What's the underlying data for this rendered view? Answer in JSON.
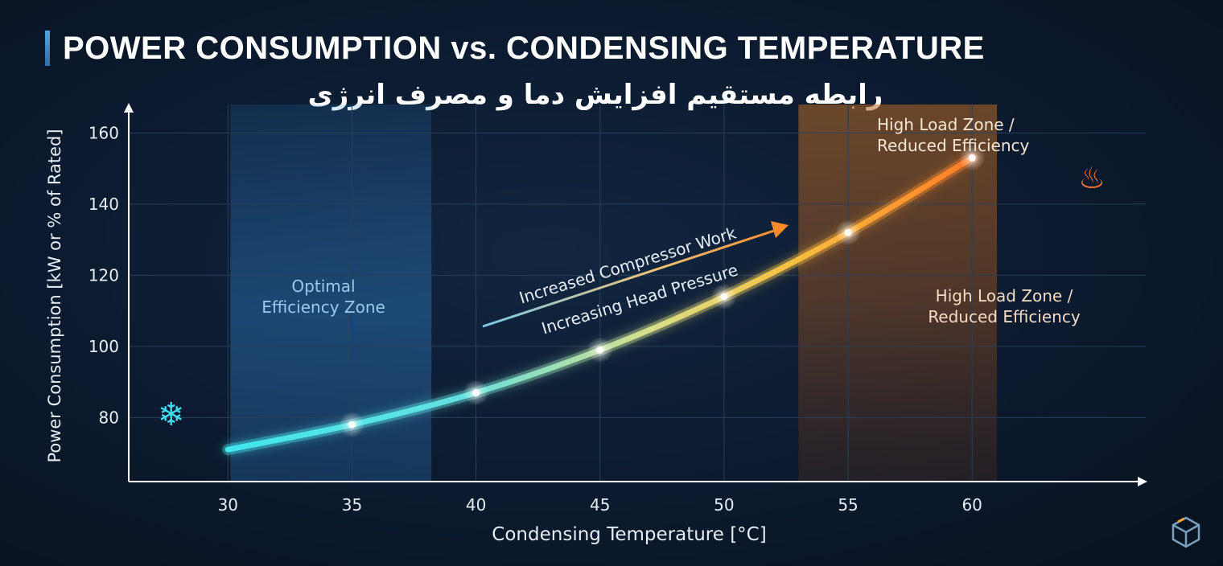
{
  "chart_data": {
    "type": "line",
    "title": "POWER CONSUMPTION vs. CONDENSING TEMPERATURE",
    "subtitle": "رابطه مستقیم افزایش دما و مصرف انرژی",
    "xlabel": "Condensing Temperature [°C]",
    "ylabel": "Power Consumption [kW or % of Rated]",
    "xlim": [
      26,
      67
    ],
    "ylim": [
      62,
      168
    ],
    "x_ticks": [
      30,
      35,
      40,
      45,
      50,
      55,
      60
    ],
    "y_ticks": [
      80,
      100,
      120,
      140,
      160
    ],
    "grid": true,
    "series": [
      {
        "x": [
          30,
          35,
          40,
          45,
          50,
          55,
          60
        ],
        "y": [
          71,
          78,
          87,
          99,
          114,
          132,
          153
        ]
      }
    ],
    "zones": [
      {
        "label": "Optimal Efficiency Zone",
        "x_range": [
          30.1,
          38.2
        ],
        "color": "#2f7fc8"
      },
      {
        "label": "High Load Zone / Reduced Efficiency",
        "x_range": [
          53,
          61
        ],
        "color": "#c8782a"
      }
    ],
    "annotations": {
      "arrow_label_1": "Increased Compressor Work",
      "arrow_label_2": "Increasing Head Pressure"
    },
    "zone_labels": {
      "optimal_line1": "Optimal",
      "optimal_line2": "Efficiency Zone",
      "high_top_line1": "High Load Zone /",
      "high_top_line2": "Reduced Efficiency",
      "high_mid_line1": "High Load Zone /",
      "high_mid_line2": "Reduced Efficiency"
    },
    "icons": {
      "cold": "snowflake-icon",
      "hot": "hot-steam-icon",
      "brand": "cube-logo-icon"
    },
    "colors": {
      "curve_start": "#3ee8f0",
      "curve_mid": "#e8d25a",
      "curve_end": "#ff4a3a",
      "grid": "#2a3f58",
      "axis": "#ffffff"
    }
  }
}
